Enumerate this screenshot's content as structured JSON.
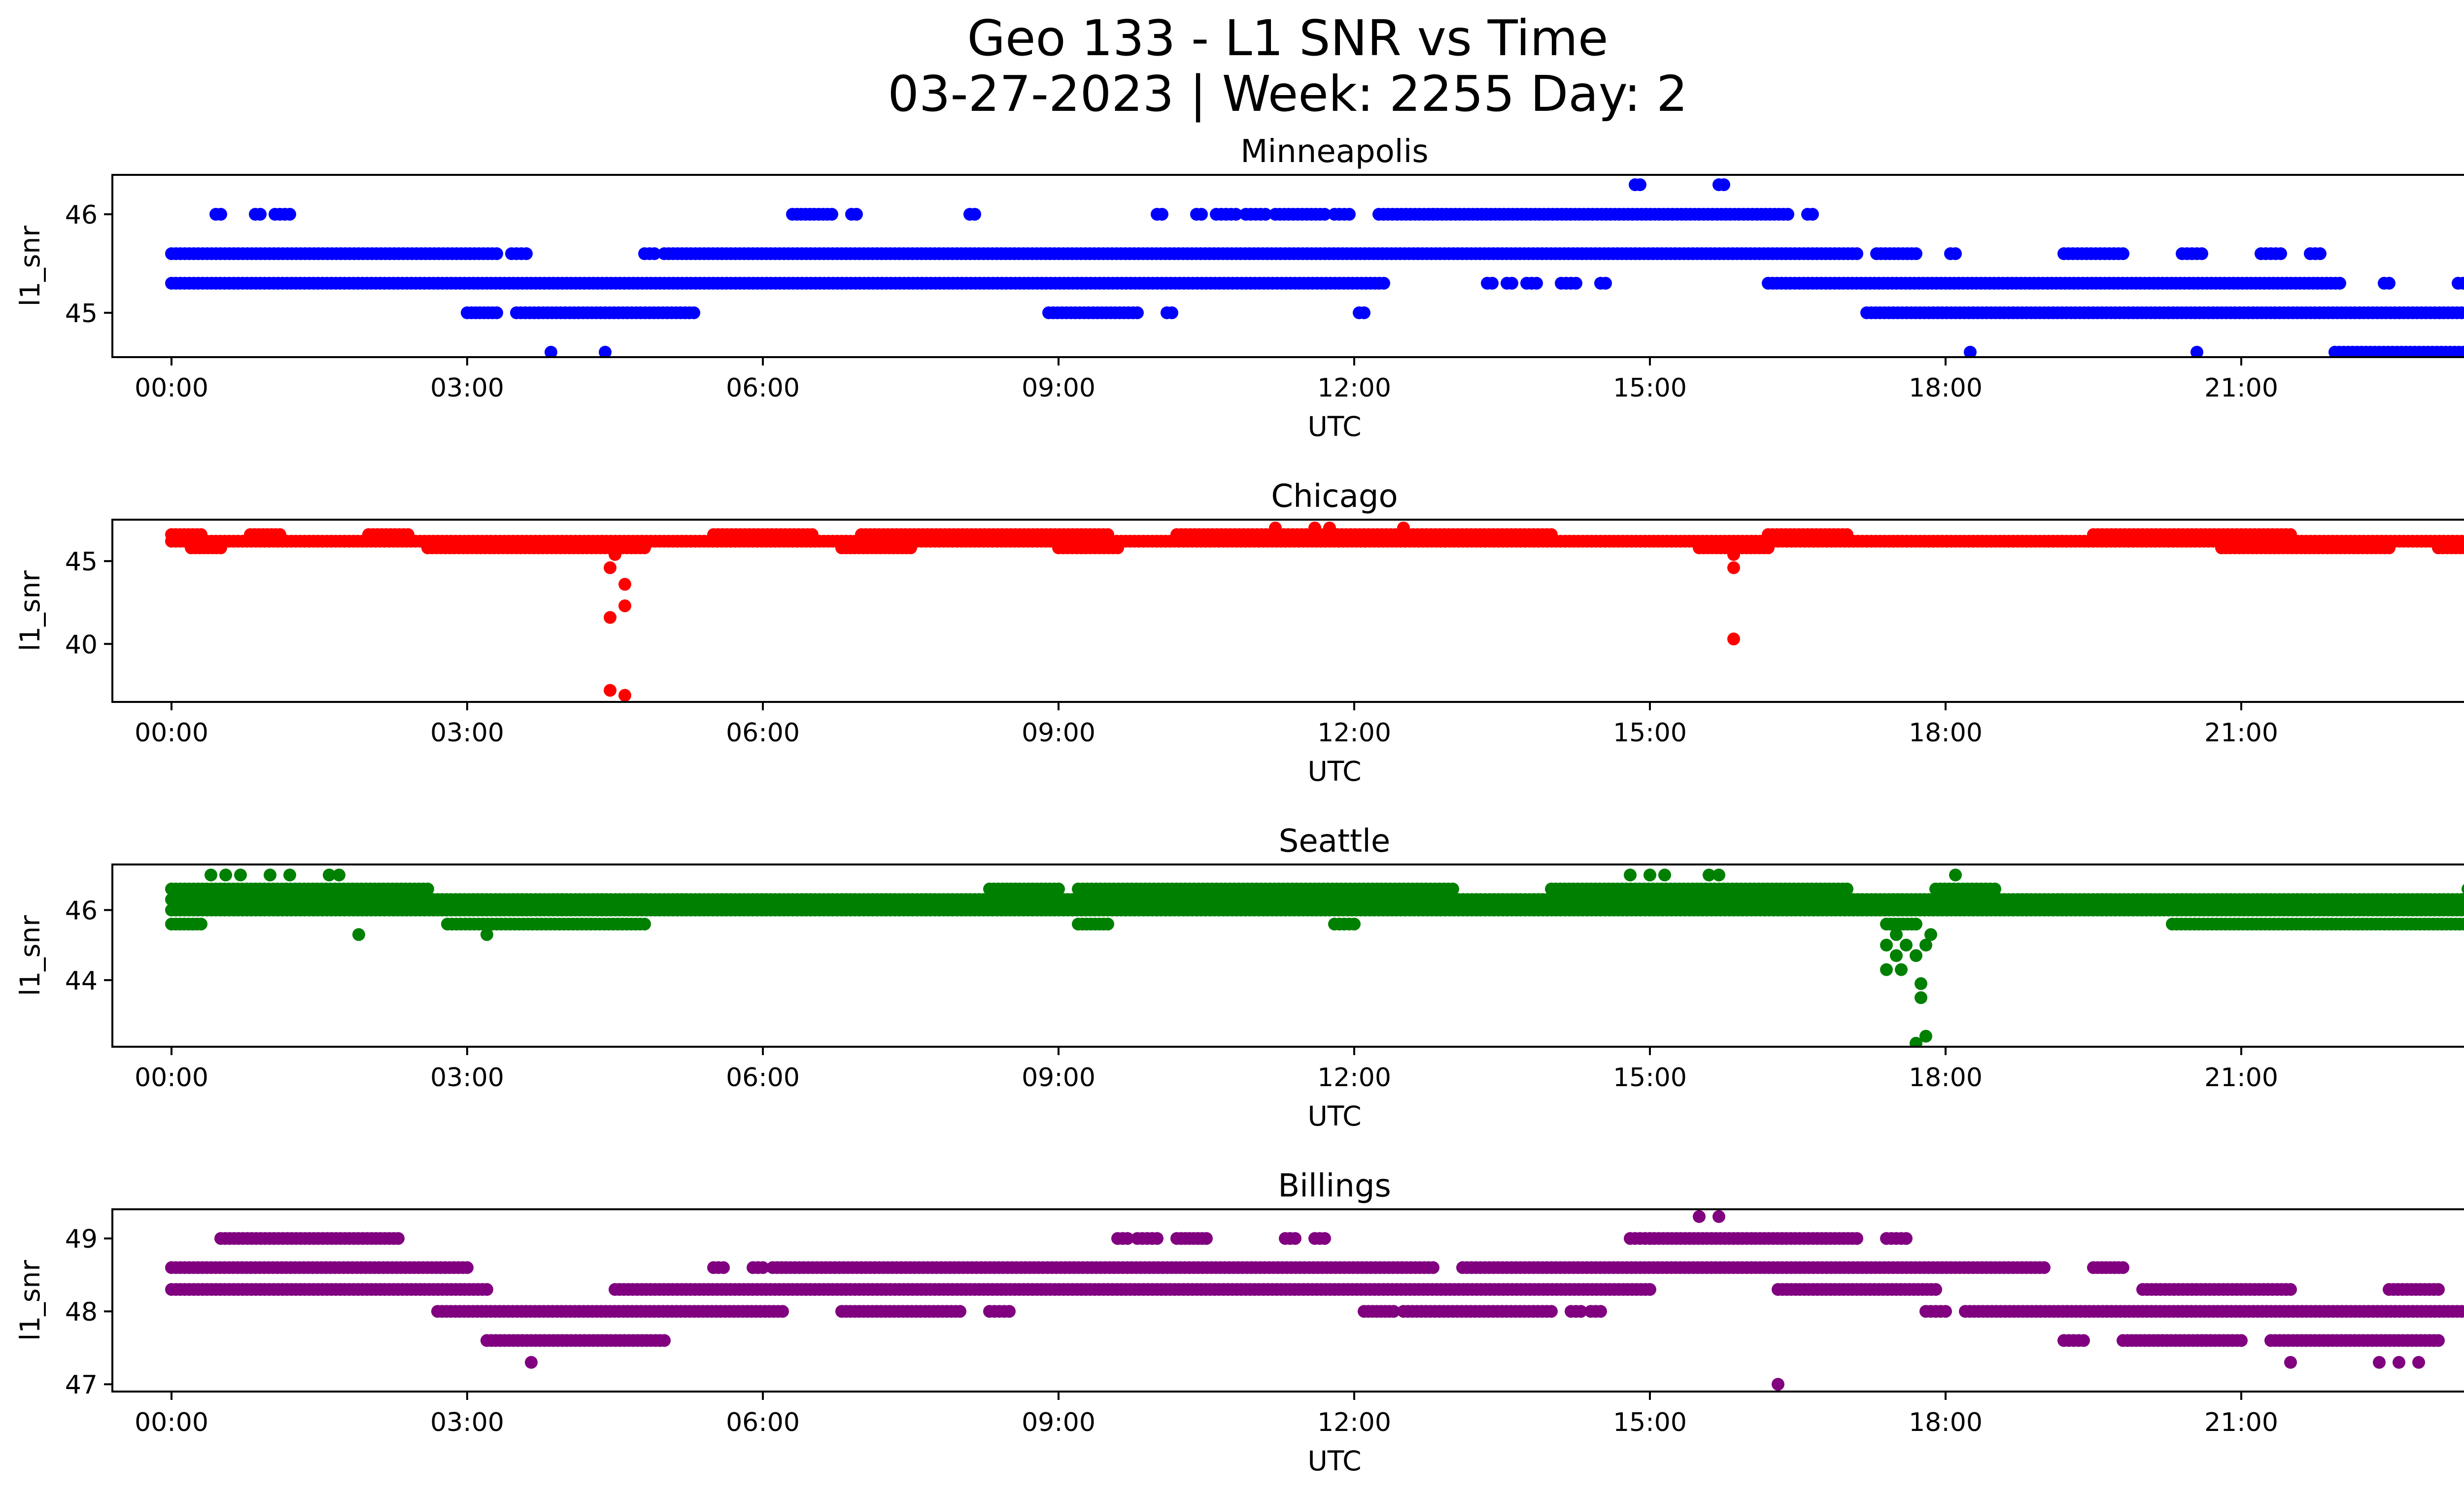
{
  "figure": {
    "title_line1": "Geo 133 - L1 SNR vs Time",
    "title_line2": "03-27-2023 | Week: 2255 Day: 2"
  },
  "chart_data": [
    {
      "type": "scatter",
      "title": "Minneapolis",
      "xlabel": "UTC",
      "ylabel": "l1_snr",
      "color": "#0000ff",
      "xlim": [
        -0.6,
        24.2
      ],
      "ylim": [
        44.55,
        46.4
      ],
      "yticks": [
        45,
        46
      ],
      "xticks": [
        "00:00",
        "03:00",
        "06:00",
        "09:00",
        "12:00",
        "15:00",
        "18:00",
        "21:00",
        "00:00"
      ],
      "series": [
        {
          "y": 45.6,
          "ranges": [
            [
              0.0,
              3.3
            ],
            [
              3.45,
              3.6
            ],
            [
              4.8,
              4.9
            ],
            [
              5.0,
              17.1
            ],
            [
              17.3,
              17.7
            ],
            [
              18.05,
              18.1
            ],
            [
              19.2,
              19.8
            ],
            [
              20.4,
              20.6
            ],
            [
              21.2,
              21.4
            ],
            [
              21.7,
              21.8
            ]
          ]
        },
        {
          "y": 45.3,
          "ranges": [
            [
              0.0,
              12.3
            ],
            [
              13.35,
              13.4
            ],
            [
              13.55,
              13.6
            ],
            [
              13.75,
              13.85
            ],
            [
              14.1,
              14.25
            ],
            [
              14.5,
              14.55
            ],
            [
              16.2,
              22.0
            ],
            [
              22.45,
              22.5
            ],
            [
              23.2,
              23.3
            ],
            [
              23.4,
              23.5
            ],
            [
              23.65,
              24.0
            ]
          ]
        },
        {
          "y": 45.0,
          "ranges": [
            [
              3.0,
              3.3
            ],
            [
              3.5,
              5.3
            ],
            [
              8.9,
              9.8
            ],
            [
              10.1,
              10.15
            ],
            [
              12.05,
              12.1
            ],
            [
              17.2,
              24.0
            ]
          ]
        },
        {
          "y": 46.0,
          "ranges": [
            [
              0.45,
              0.5
            ],
            [
              0.85,
              0.9
            ],
            [
              1.05,
              1.2
            ],
            [
              6.3,
              6.7
            ],
            [
              6.9,
              6.95
            ],
            [
              8.1,
              8.15
            ],
            [
              10.0,
              10.05
            ],
            [
              10.4,
              10.45
            ],
            [
              10.6,
              10.8
            ],
            [
              10.9,
              11.1
            ],
            [
              11.2,
              11.7
            ],
            [
              11.8,
              11.95
            ],
            [
              12.25,
              12.8
            ],
            [
              12.8,
              16.4
            ],
            [
              16.6,
              16.65
            ]
          ]
        },
        {
          "y": 46.3,
          "points": [
            14.85,
            14.9,
            15.7,
            15.75
          ]
        },
        {
          "y": 44.6,
          "points": [
            3.85,
            4.4,
            18.25,
            20.55
          ],
          "ranges": [
            [
              21.95,
              23.3
            ]
          ]
        }
      ]
    },
    {
      "type": "scatter",
      "title": "Chicago",
      "xlabel": "UTC",
      "ylabel": "l1_snr",
      "color": "#ff0000",
      "xlim": [
        -0.6,
        24.2
      ],
      "ylim": [
        36.5,
        47.5
      ],
      "yticks": [
        40,
        45
      ],
      "xticks": [
        "00:00",
        "03:00",
        "06:00",
        "09:00",
        "12:00",
        "15:00",
        "18:00",
        "21:00",
        "00:00"
      ],
      "series": [
        {
          "y": 46.2,
          "ranges": [
            [
              0.0,
              24.0
            ]
          ]
        },
        {
          "y": 46.6,
          "ranges": [
            [
              0.0,
              0.3
            ],
            [
              0.8,
              1.1
            ],
            [
              2.0,
              2.4
            ],
            [
              5.5,
              6.5
            ],
            [
              7.0,
              9.5
            ],
            [
              10.2,
              14.0
            ],
            [
              16.2,
              17.0
            ],
            [
              19.5,
              21.5
            ]
          ]
        },
        {
          "y": 45.8,
          "ranges": [
            [
              0.2,
              0.5
            ],
            [
              2.6,
              4.8
            ],
            [
              6.8,
              7.5
            ],
            [
              9.0,
              9.6
            ],
            [
              15.5,
              16.2
            ],
            [
              20.8,
              22.5
            ],
            [
              23.0,
              23.8
            ]
          ]
        },
        {
          "y": 47.0,
          "points": [
            11.2,
            11.6,
            11.75,
            12.5
          ]
        },
        {
          "y": 45.4,
          "points": [
            4.5,
            15.85
          ]
        },
        {
          "y": 44.6,
          "points": [
            4.45,
            15.85
          ]
        },
        {
          "y": 43.6,
          "points": [
            4.6
          ]
        },
        {
          "y": 42.3,
          "points": [
            4.6
          ]
        },
        {
          "y": 41.6,
          "points": [
            4.45
          ]
        },
        {
          "y": 40.3,
          "points": [
            15.85
          ]
        },
        {
          "y": 37.2,
          "points": [
            4.45
          ]
        },
        {
          "y": 36.9,
          "points": [
            4.6
          ]
        }
      ]
    },
    {
      "type": "scatter",
      "title": "Seattle",
      "xlabel": "UTC",
      "ylabel": "l1_snr",
      "color": "#008000",
      "xlim": [
        -0.6,
        24.2
      ],
      "ylim": [
        42.1,
        47.3
      ],
      "yticks": [
        44,
        46
      ],
      "xticks": [
        "00:00",
        "03:00",
        "06:00",
        "09:00",
        "12:00",
        "15:00",
        "18:00",
        "21:00",
        "00:00"
      ],
      "series": [
        {
          "y": 46.3,
          "ranges": [
            [
              0.0,
              24.0
            ]
          ]
        },
        {
          "y": 46.0,
          "ranges": [
            [
              0.0,
              24.0
            ]
          ]
        },
        {
          "y": 46.6,
          "ranges": [
            [
              0.0,
              2.6
            ],
            [
              8.3,
              9.0
            ],
            [
              9.2,
              13.0
            ],
            [
              14.0,
              17.0
            ],
            [
              17.9,
              18.5
            ],
            [
              23.3,
              24.0
            ]
          ]
        },
        {
          "y": 45.6,
          "ranges": [
            [
              0.0,
              0.3
            ],
            [
              2.8,
              4.8
            ],
            [
              9.2,
              9.5
            ],
            [
              11.8,
              12.0
            ],
            [
              17.4,
              17.7
            ],
            [
              20.3,
              23.8
            ]
          ]
        },
        {
          "y": 47.0,
          "points": [
            0.4,
            0.55,
            0.7,
            1.0,
            1.2,
            1.6,
            1.7,
            14.8,
            15.0,
            15.15,
            15.6,
            15.7,
            18.1
          ]
        },
        {
          "y": 45.3,
          "points": [
            1.9,
            3.2,
            17.5,
            17.85
          ]
        },
        {
          "y": 45.0,
          "points": [
            17.4,
            17.6,
            17.8
          ]
        },
        {
          "y": 44.7,
          "points": [
            17.5,
            17.7
          ]
        },
        {
          "y": 44.3,
          "points": [
            17.4,
            17.55
          ]
        },
        {
          "y": 43.9,
          "points": [
            17.75
          ]
        },
        {
          "y": 43.5,
          "points": [
            17.75
          ]
        },
        {
          "y": 42.4,
          "points": [
            17.8
          ]
        },
        {
          "y": 42.2,
          "points": [
            17.7
          ]
        }
      ]
    },
    {
      "type": "scatter",
      "title": "Billings",
      "xlabel": "UTC",
      "ylabel": "l1_snr",
      "color": "#800080",
      "xlim": [
        -0.6,
        24.2
      ],
      "ylim": [
        46.9,
        49.4
      ],
      "yticks": [
        47,
        48,
        49
      ],
      "xticks": [
        "00:00",
        "03:00",
        "06:00",
        "09:00",
        "12:00",
        "15:00",
        "18:00",
        "21:00",
        "00:00"
      ],
      "series": [
        {
          "y": 48.6,
          "ranges": [
            [
              0.0,
              3.0
            ],
            [
              5.5,
              5.6
            ],
            [
              5.9,
              6.0
            ],
            [
              6.1,
              12.8
            ],
            [
              13.1,
              19.0
            ],
            [
              19.5,
              19.8
            ]
          ]
        },
        {
          "y": 48.3,
          "ranges": [
            [
              0.0,
              3.2
            ],
            [
              4.5,
              15.0
            ],
            [
              16.3,
              17.9
            ],
            [
              20.0,
              21.5
            ],
            [
              22.5,
              23.0
            ],
            [
              23.4,
              24.0
            ]
          ]
        },
        {
          "y": 48.0,
          "ranges": [
            [
              2.7,
              6.2
            ],
            [
              6.8,
              8.0
            ],
            [
              8.3,
              8.5
            ],
            [
              12.1,
              12.4
            ],
            [
              12.5,
              14.0
            ],
            [
              14.2,
              14.3
            ],
            [
              14.4,
              14.5
            ],
            [
              17.8,
              18.0
            ],
            [
              18.2,
              24.0
            ]
          ]
        },
        {
          "y": 49.0,
          "ranges": [
            [
              0.5,
              2.3
            ],
            [
              9.6,
              9.7
            ],
            [
              9.8,
              10.0
            ],
            [
              10.2,
              10.5
            ],
            [
              11.3,
              11.4
            ],
            [
              11.6,
              11.7
            ],
            [
              14.8,
              15.0
            ],
            [
              15.0,
              17.1
            ],
            [
              17.4,
              17.6
            ]
          ]
        },
        {
          "y": 47.6,
          "ranges": [
            [
              3.2,
              5.0
            ],
            [
              19.2,
              19.4
            ],
            [
              19.8,
              21.0
            ],
            [
              21.3,
              23.0
            ]
          ]
        },
        {
          "y": 49.3,
          "points": [
            15.5,
            15.7
          ]
        },
        {
          "y": 48.6,
          "points": [
            23.8
          ]
        },
        {
          "y": 47.3,
          "points": [
            3.65,
            21.5,
            22.4,
            22.6,
            22.8
          ]
        },
        {
          "y": 47.0,
          "points": [
            16.3
          ]
        }
      ]
    }
  ]
}
